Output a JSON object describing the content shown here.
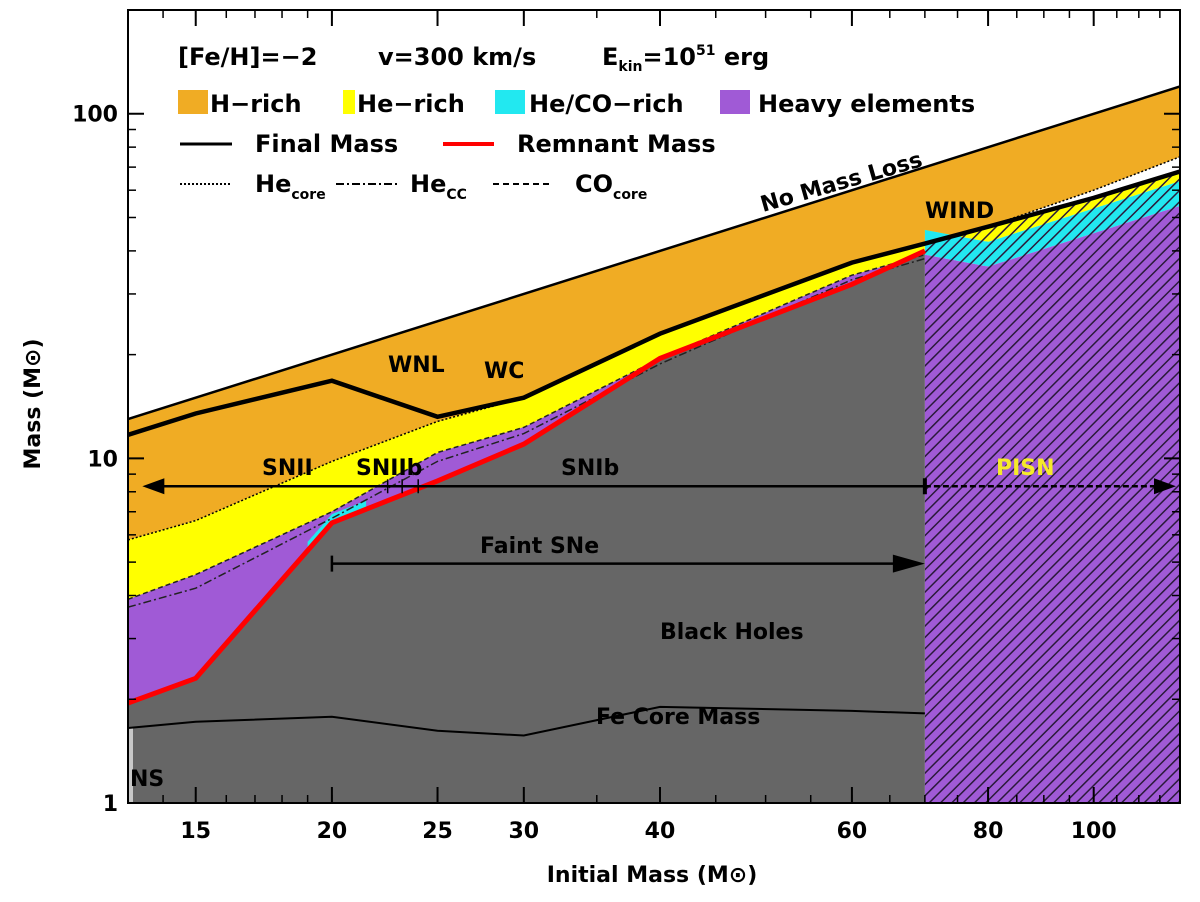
{
  "chart_data": {
    "type": "area",
    "x_scale": "log",
    "y_scale": "log",
    "xlim": [
      13,
      120
    ],
    "ylim": [
      1,
      200
    ],
    "x_ticks": [
      15,
      20,
      25,
      30,
      40,
      60,
      80,
      100
    ],
    "y_ticks": [
      1,
      10,
      100
    ],
    "xlabel": "Initial Mass (M⊙)",
    "ylabel": "Mass (M⊙)",
    "header": {
      "feh": "[Fe/H]=−2",
      "v": "v=300 km/s",
      "ekin_prefix": "E",
      "ekin_sub": "kin",
      "ekin_eq": "=10",
      "ekin_exp": "51",
      "ekin_unit": " erg"
    },
    "legend": {
      "fills": [
        {
          "label": "H−rich",
          "color": "#f0ac24"
        },
        {
          "label": "He−rich",
          "color": "#ffff00"
        },
        {
          "label": "He/CO−rich",
          "color": "#22e8f0"
        },
        {
          "label": "Heavy elements",
          "color": "#a05ad6"
        }
      ],
      "lines": [
        {
          "label": "Final Mass",
          "color": "#000000"
        },
        {
          "label": "Remnant Mass",
          "color": "#ff0000"
        }
      ],
      "cores": [
        {
          "label": "He",
          "sub": "core"
        },
        {
          "label": "He",
          "sub": "CC"
        },
        {
          "label": "CO",
          "sub": "core"
        }
      ]
    },
    "annotations": {
      "no_mass_loss": "No Mass Loss",
      "wind": "WIND",
      "wnl": "WNL",
      "wc": "WC",
      "snii": "SNII",
      "sniib": "SNIIb",
      "snib": "SNIb",
      "pisn": "PISN",
      "faint": "Faint SNe",
      "bh": "Black Holes",
      "fe_core": "Fe Core Mass",
      "ns": "NS"
    },
    "colors": {
      "h_rich": "#f0ac24",
      "he_rich": "#ffff00",
      "heco_rich": "#22e8f0",
      "heavy": "#a05ad6",
      "remnant_fill": "#666666",
      "remnant_line": "#ff0000",
      "ns_strip": "#c8c8c8"
    },
    "series": [
      {
        "name": "No Mass Loss",
        "x": [
          13,
          120
        ],
        "y": [
          13,
          120
        ]
      },
      {
        "name": "Final Mass",
        "x": [
          13,
          15,
          20,
          25,
          30,
          40,
          60,
          70,
          80,
          100,
          120
        ],
        "y": [
          11.7,
          13.5,
          16.8,
          13.2,
          15.0,
          23.0,
          37.0,
          42.0,
          47.0,
          57.0,
          68.0
        ]
      },
      {
        "name": "He core",
        "x": [
          13,
          15,
          20,
          25,
          30,
          40,
          60,
          70,
          80,
          100,
          120
        ],
        "y": [
          5.8,
          6.6,
          9.8,
          12.8,
          15.0,
          23.0,
          37.0,
          42.0,
          47.0,
          60.0,
          75.0
        ]
      },
      {
        "name": "He CC",
        "x": [
          13,
          15,
          20,
          25,
          30,
          40,
          60,
          70,
          80,
          100,
          120
        ],
        "y": [
          3.7,
          4.2,
          6.7,
          9.8,
          11.8,
          18.8,
          33.0,
          38.0,
          43.0,
          53.0,
          62.0
        ]
      },
      {
        "name": "CO core",
        "x": [
          13,
          15,
          20,
          25,
          30,
          40,
          60,
          70,
          80,
          100,
          120
        ],
        "y": [
          3.9,
          4.6,
          7.0,
          10.4,
          12.3,
          19.5,
          34.0,
          39.0,
          36.0,
          45.0,
          54.0
        ]
      },
      {
        "name": "Remnant Mass",
        "x": [
          13,
          15,
          20,
          25,
          30,
          40,
          60,
          70
        ],
        "y": [
          1.95,
          2.3,
          6.5,
          8.6,
          11.0,
          19.5,
          32.0,
          40.0
        ]
      },
      {
        "name": "Fe Core Mass",
        "x": [
          13,
          15,
          20,
          25,
          30,
          40,
          60,
          70
        ],
        "y": [
          1.65,
          1.72,
          1.78,
          1.62,
          1.57,
          1.9,
          1.85,
          1.82
        ]
      }
    ],
    "pisn_start": 70,
    "faint_range": [
      20,
      70
    ],
    "sn_arrow_y": 8.3
  }
}
